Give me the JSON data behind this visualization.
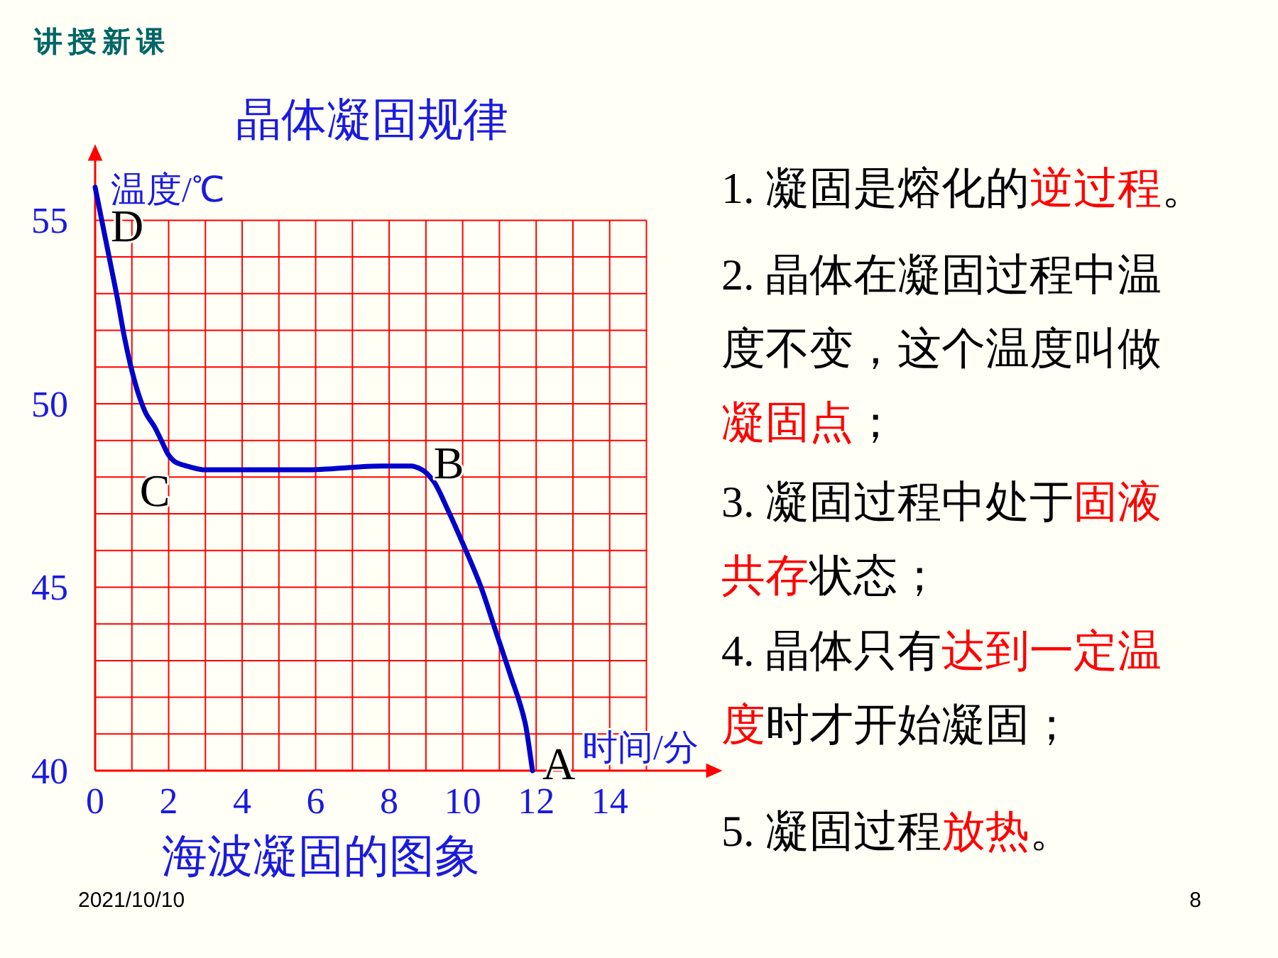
{
  "chart_data": {
    "type": "line",
    "title": "晶体凝固规律",
    "xlabel": "时间/分",
    "ylabel": "温度/℃",
    "x": [
      0,
      0.2,
      0.4,
      0.6,
      0.8,
      1.0,
      1.2,
      1.4,
      1.6,
      1.8,
      2.0,
      2.2,
      2.5,
      3.0,
      4.0,
      5.7,
      7.8,
      8.6,
      8.9,
      9.2,
      9.6,
      10.0,
      10.5,
      10.9,
      11.3,
      11.7,
      11.9
    ],
    "series": [
      {
        "color": "#0000cc",
        "values": [
          55.9,
          54.9,
          53.9,
          52.9,
          51.8,
          50.9,
          50.2,
          49.7,
          49.4,
          49.0,
          48.6,
          48.4,
          48.3,
          48.2,
          48.2,
          48.2,
          48.3,
          48.3,
          48.2,
          47.9,
          47.1,
          46.2,
          45.0,
          43.8,
          42.6,
          41.3,
          40.0
        ]
      }
    ],
    "xlim": [
      0,
      17
    ],
    "ylim": [
      40,
      57
    ],
    "xticks": [
      0,
      {
        "value": 1,
        "label": null
      },
      2,
      {
        "value": 3,
        "label": null
      },
      4,
      {
        "value": 5,
        "label": null
      },
      6,
      {
        "value": 7,
        "label": null
      },
      8,
      {
        "value": 9,
        "label": null
      },
      10,
      {
        "value": 11,
        "label": null
      },
      12,
      {
        "value": 13,
        "label": null
      },
      14,
      {
        "value": 15,
        "label": null
      }
    ],
    "yticks": [
      40,
      {
        "value": 41,
        "label": null
      },
      {
        "value": 42,
        "label": null
      },
      {
        "value": 43,
        "label": null
      },
      {
        "value": 44,
        "label": null
      },
      45,
      {
        "value": 46,
        "label": null
      },
      {
        "value": 47,
        "label": null
      },
      {
        "value": 48,
        "label": null
      },
      {
        "value": 49,
        "label": null
      },
      50,
      {
        "value": 51,
        "label": null
      },
      {
        "value": 52,
        "label": null
      },
      {
        "value": 53,
        "label": null
      },
      {
        "value": 54,
        "label": null
      },
      55
    ],
    "grid": true,
    "line_style": "solid",
    "annotations": [
      "讲授新课",
      {
        "text": "D",
        "x": 0,
        "y": 55.9
      },
      {
        "text": "C",
        "x": 2.0,
        "y": 48.6
      },
      {
        "text": "B",
        "x": 8.9,
        "y": 48.2
      },
      {
        "text": "A",
        "x": 11.9,
        "y": 40
      },
      "海波凝固的图象",
      "1. 凝固是熔化的",
      "逆过程",
      "。",
      "2. 晶体在凝固过程中温度不变，这个温度叫做",
      "凝固点",
      "；",
      "3. 凝固过程中处于",
      "固液共存",
      "状态；",
      "4. 晶体只有",
      "达到一定温度",
      "时才开始凝固；",
      "5. 凝固过程",
      "放热",
      "。",
      "2021/10/10",
      "8"
    ]
  }
}
